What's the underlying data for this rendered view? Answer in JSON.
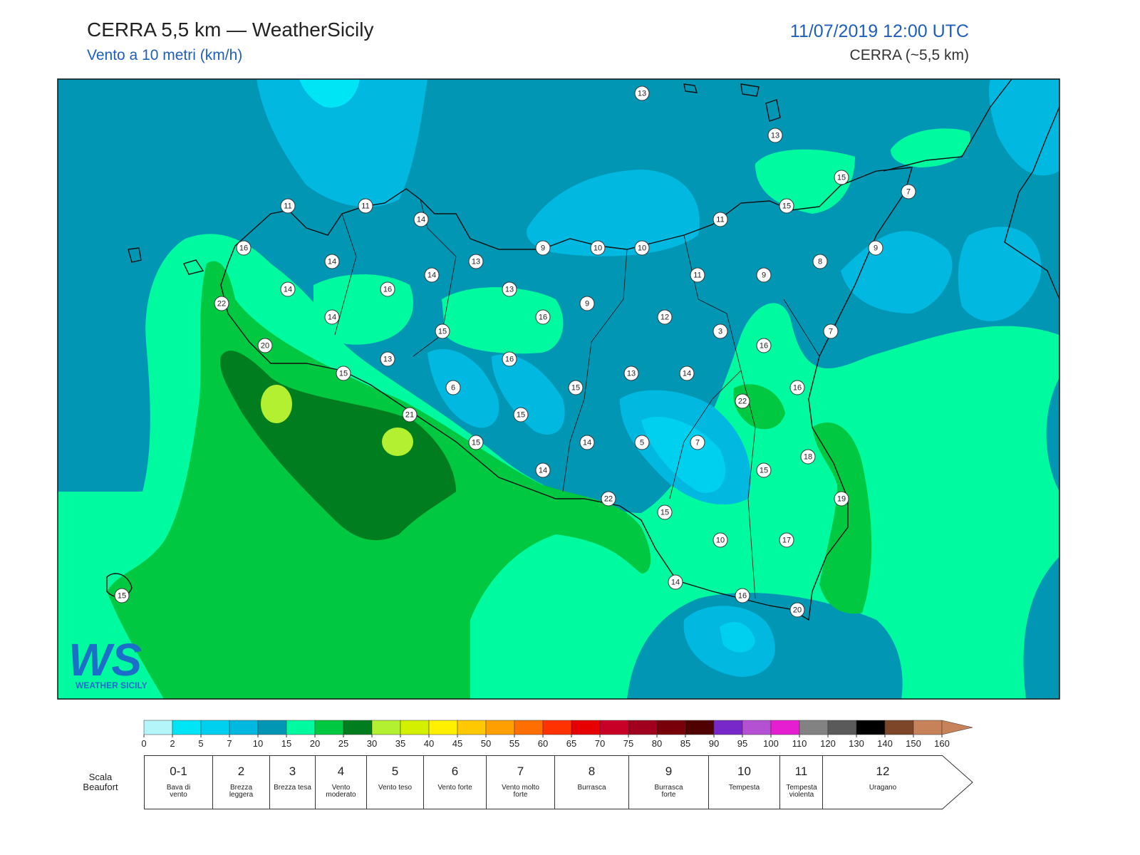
{
  "header": {
    "title": "CERRA 5,5 km — WeatherSicily",
    "subtitle": "Vento a 10 metri (km/h)",
    "date": "11/07/2019 12:00 UTC",
    "model": "CERRA (~5,5 km)"
  },
  "logo": {
    "mark": "WS",
    "text": "WEATHER SICILY"
  },
  "stations": [
    13,
    13,
    15,
    15,
    7,
    11,
    11,
    14,
    11,
    16,
    9,
    10,
    10,
    9,
    14,
    13,
    8,
    14,
    11,
    9,
    14,
    16,
    13,
    22,
    14,
    16,
    9,
    12,
    15,
    3,
    7,
    20,
    16,
    13,
    16,
    15,
    13,
    14,
    6,
    15,
    16,
    22,
    21,
    15,
    18,
    15,
    14,
    5,
    7,
    14,
    15,
    22,
    19,
    15,
    10,
    17,
    15,
    14,
    16,
    20
  ],
  "colorbar": {
    "ticks": [
      0,
      2,
      5,
      7,
      10,
      15,
      20,
      25,
      30,
      35,
      40,
      45,
      50,
      55,
      60,
      65,
      70,
      75,
      80,
      85,
      90,
      95,
      100,
      110,
      120,
      130,
      140,
      150,
      160
    ],
    "colors": [
      "#b4f5fa",
      "#00e5f5",
      "#00d0f0",
      "#00b8e0",
      "#0096b4",
      "#00faa0",
      "#00c840",
      "#007d1e",
      "#b4f032",
      "#d2f000",
      "#fff000",
      "#ffc800",
      "#ffa000",
      "#ff6e00",
      "#ff3200",
      "#e60000",
      "#c80028",
      "#a0001e",
      "#78000a",
      "#500000",
      "#7828c8",
      "#b450d2",
      "#e61ed2",
      "#828282",
      "#5a5a5a",
      "#000000",
      "#7d4628",
      "#c8825a"
    ]
  },
  "beaufort": {
    "label": [
      "Scala",
      "Beaufort"
    ],
    "classes": [
      {
        "force": "0-1",
        "name": "Bava di vento"
      },
      {
        "force": 2,
        "name": "Brezza leggera"
      },
      {
        "force": 3,
        "name": "Brezza tesa"
      },
      {
        "force": 4,
        "name": "Vento moderato"
      },
      {
        "force": 5,
        "name": "Vento teso"
      },
      {
        "force": 6,
        "name": "Vento forte"
      },
      {
        "force": 7,
        "name": "Vento molto forte"
      },
      {
        "force": 8,
        "name": "Burrasca"
      },
      {
        "force": 9,
        "name": "Burrasca forte"
      },
      {
        "force": 10,
        "name": "Tempesta"
      },
      {
        "force": 11,
        "name": "Tempesta violenta"
      },
      {
        "force": 12,
        "name": "Uragano"
      }
    ]
  }
}
